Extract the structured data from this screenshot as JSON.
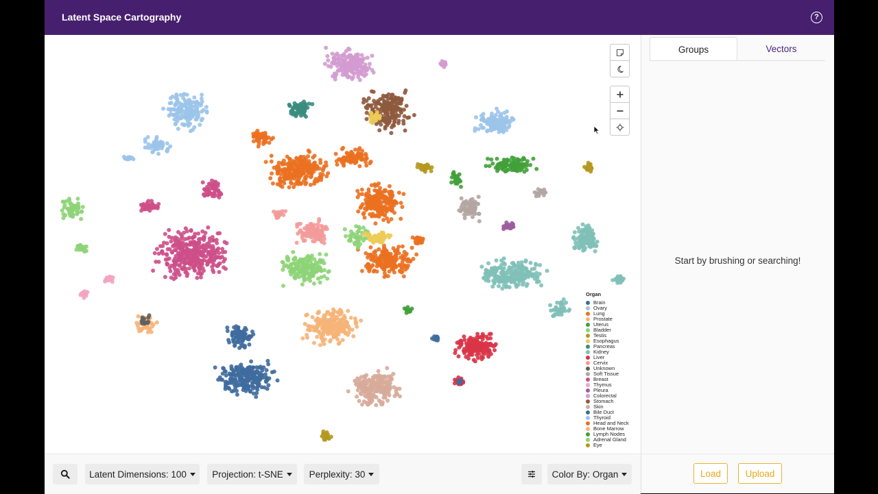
{
  "app": {
    "title": "Latent Space Cartography",
    "help_icon": "help-circle-icon"
  },
  "toolbar": {
    "select_icon": "select-box-icon",
    "theme_icon": "moon-icon",
    "zoom_in_icon": "plus-icon",
    "zoom_out_icon": "minus-icon",
    "recenter_icon": "crosshair-icon"
  },
  "bottom_bar": {
    "search_icon": "search-icon",
    "latent_dimensions": "Latent Dimensions: 100",
    "projection": "Projection: t-SNE",
    "perplexity": "Perplexity: 30",
    "settings_icon": "sliders-icon",
    "color_by": "Color By: Organ"
  },
  "panel": {
    "tabs": [
      {
        "label": "Groups",
        "active": true
      },
      {
        "label": "Vectors",
        "active": false
      }
    ],
    "empty_message": "Start by brushing or searching!",
    "load_label": "Load",
    "upload_label": "Upload"
  },
  "legend": {
    "title": "Organ",
    "items": [
      {
        "label": "Brain",
        "color": "#3f6b9e"
      },
      {
        "label": "Ovary",
        "color": "#9cc4ea"
      },
      {
        "label": "Lung",
        "color": "#eb7121"
      },
      {
        "label": "Prostate",
        "color": "#f6b478"
      },
      {
        "label": "Uterus",
        "color": "#43a03a"
      },
      {
        "label": "Bladder",
        "color": "#8dd477"
      },
      {
        "label": "Testis",
        "color": "#b5981f"
      },
      {
        "label": "Esophagus",
        "color": "#eccb56"
      },
      {
        "label": "Pancreas",
        "color": "#3a8d80"
      },
      {
        "label": "Kidney",
        "color": "#80c0b8"
      },
      {
        "label": "Liver",
        "color": "#d93447"
      },
      {
        "label": "Cervix",
        "color": "#f39b9a"
      },
      {
        "label": "Unknown",
        "color": "#5f5f5f"
      },
      {
        "label": "Soft Tissue",
        "color": "#b3a5a2"
      },
      {
        "label": "Breast",
        "color": "#cd4f88"
      },
      {
        "label": "Thymus",
        "color": "#f3a4c1"
      },
      {
        "label": "Pleura",
        "color": "#9c5ca0"
      },
      {
        "label": "Colorectal",
        "color": "#d39bd0"
      },
      {
        "label": "Stomach",
        "color": "#8e5a3e"
      },
      {
        "label": "Skin",
        "color": "#d7ab9a"
      },
      {
        "label": "Bile Duct",
        "color": "#3f6b9e"
      },
      {
        "label": "Thyroid",
        "color": "#9cc4ea"
      },
      {
        "label": "Head and Neck",
        "color": "#eb7121"
      },
      {
        "label": "Bone Marrow",
        "color": "#f6b478"
      },
      {
        "label": "Lymph Nodes",
        "color": "#43a03a"
      },
      {
        "label": "Adrenal Gland",
        "color": "#8dd477"
      },
      {
        "label": "Eye",
        "color": "#b5981f"
      }
    ]
  }
}
